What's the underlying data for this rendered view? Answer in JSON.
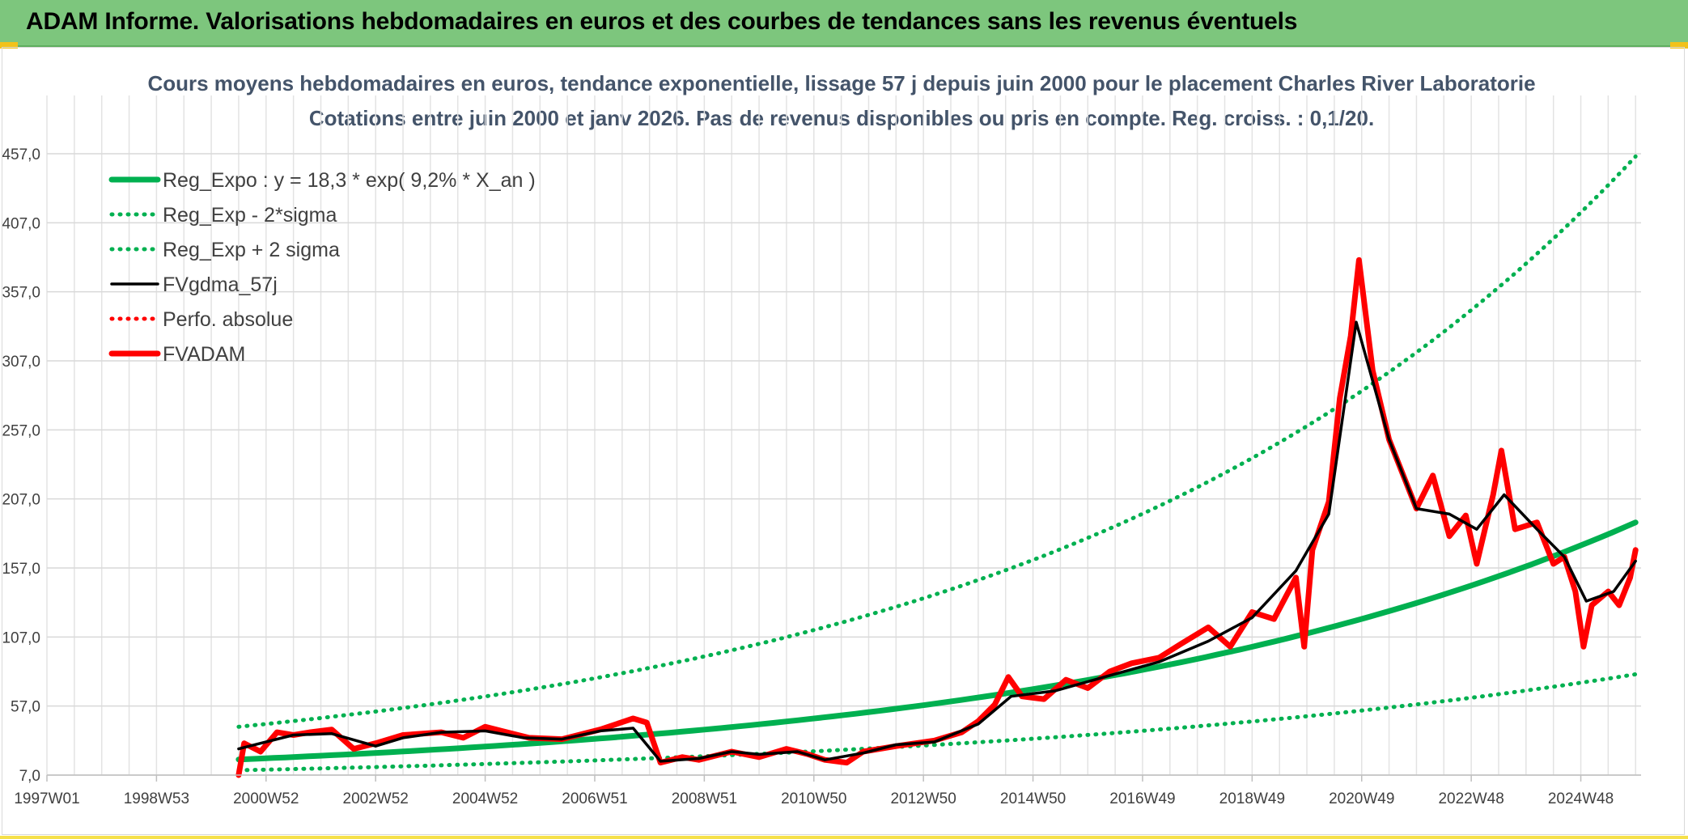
{
  "banner": {
    "title": "ADAM Informe. Valorisations hebdomadaires en euros et des courbes de tendances sans les revenus éventuels"
  },
  "colors": {
    "banner": "#7dc67d",
    "reg_green": "#00b050",
    "fvadam_red": "#ff0000",
    "gdma_black": "#000000",
    "title_text": "#44546a"
  },
  "chart_data": {
    "type": "line",
    "title": "Cours moyens hebdomadaires en euros, tendance exponentielle, lissage 57 j depuis juin 2000 pour le placement Charles River Laboratorie",
    "subtitle": "Cotations entre juin 2000 et janv 2026. Pas de revenus disponibles ou pris en compte. Reg. croiss. : 0,1/20.",
    "xlabel": "",
    "ylabel": "",
    "x_range": [
      1997.0,
      2026.1
    ],
    "x_tick_values": [
      1997.0,
      1999.0,
      2001.0,
      2003.0,
      2005.0,
      2007.0,
      2009.0,
      2011.0,
      2013.0,
      2015.0,
      2017.0,
      2019.0,
      2021.0,
      2023.0,
      2025.0
    ],
    "x_tick_labels": [
      "1997W01",
      "1998W53",
      "2000W52",
      "2002W52",
      "2004W52",
      "2006W51",
      "2008W51",
      "2010W50",
      "2012W50",
      "2014W50",
      "2016W49",
      "2018W49",
      "2020W49",
      "2022W48",
      "2024W48"
    ],
    "ylim": [
      7.0,
      457.0
    ],
    "y_ticks": [
      7.0,
      57.0,
      107.0,
      157.0,
      207.0,
      257.0,
      307.0,
      357.0,
      407.0,
      457.0
    ],
    "y_tick_labels": [
      "7,0",
      "57,0",
      "107,0",
      "157,0",
      "207,0",
      "257,0",
      "307,0",
      "357,0",
      "407,0",
      "457,0"
    ],
    "grid": true,
    "legend_position": "top-left",
    "series": [
      {
        "name": "Reg_Expo : y = 18,3 * exp( 9,2% *  X_an )",
        "style": "solid-thick",
        "color": "#00b050",
        "x": [
          2000.5,
          2026.0
        ],
        "values": [
          18.3,
          190.0
        ]
      },
      {
        "name": "Reg_Exp - 2*sigma",
        "style": "dotted",
        "color": "#00b050",
        "x": [
          2000.5,
          2026.0
        ],
        "values": [
          10.5,
          80.0
        ]
      },
      {
        "name": "Reg_Exp + 2 sigma",
        "style": "dotted",
        "color": "#00b050",
        "x": [
          2000.5,
          2026.0
        ],
        "values": [
          42.0,
          455.0
        ]
      },
      {
        "name": "FVgdma_57j",
        "style": "solid",
        "color": "#000000",
        "x": [
          2000.5,
          2000.9,
          2001.5,
          2002.2,
          2003.0,
          2003.5,
          2004.2,
          2005.0,
          2005.7,
          2006.4,
          2007.1,
          2007.7,
          2008.2,
          2008.9,
          2009.5,
          2010.0,
          2010.7,
          2011.2,
          2011.9,
          2012.5,
          2013.2,
          2014.0,
          2014.6,
          2015.4,
          2016.3,
          2017.3,
          2018.2,
          2019.0,
          2019.8,
          2020.4,
          2020.9,
          2021.5,
          2022.0,
          2022.6,
          2023.1,
          2023.6,
          2024.2,
          2024.7,
          2025.1,
          2025.6,
          2026.0
        ],
        "values": [
          26,
          30,
          36,
          37,
          28,
          34,
          38,
          39,
          34,
          33,
          39,
          41,
          17,
          19,
          24,
          22,
          24,
          18,
          23,
          29,
          31,
          44,
          64,
          68,
          78,
          89,
          104,
          121,
          155,
          196,
          335,
          250,
          200,
          196,
          185,
          210,
          185,
          165,
          133,
          140,
          162
        ]
      },
      {
        "name": "Perfo. absolue",
        "style": "dotted",
        "color": "#ff0000",
        "x": [],
        "values": []
      },
      {
        "name": "FVADAM",
        "style": "solid-thick",
        "color": "#ff0000",
        "x": [
          2000.5,
          2000.6,
          2000.9,
          2001.2,
          2001.5,
          2001.8,
          2002.2,
          2002.6,
          2003.0,
          2003.5,
          2004.2,
          2004.6,
          2005.0,
          2005.4,
          2005.8,
          2006.4,
          2007.1,
          2007.7,
          2007.95,
          2008.2,
          2008.6,
          2008.9,
          2009.5,
          2010.0,
          2010.5,
          2010.9,
          2011.2,
          2011.6,
          2011.9,
          2012.5,
          2013.2,
          2013.7,
          2014.0,
          2014.3,
          2014.55,
          2014.8,
          2015.2,
          2015.6,
          2016.0,
          2016.4,
          2016.8,
          2017.3,
          2017.7,
          2018.2,
          2018.6,
          2019.0,
          2019.4,
          2019.8,
          2019.95,
          2020.1,
          2020.4,
          2020.6,
          2020.8,
          2020.95,
          2021.2,
          2021.5,
          2021.8,
          2022.0,
          2022.3,
          2022.6,
          2022.9,
          2023.1,
          2023.4,
          2023.55,
          2023.8,
          2024.2,
          2024.5,
          2024.7,
          2024.9,
          2025.05,
          2025.2,
          2025.5,
          2025.7,
          2025.9,
          2026.0
        ],
        "values": [
          7,
          30,
          24,
          38,
          36,
          38,
          40,
          26,
          30,
          36,
          38,
          34,
          42,
          38,
          34,
          33,
          40,
          48,
          45,
          16,
          20,
          18,
          24,
          20,
          26,
          22,
          18,
          16,
          24,
          28,
          32,
          38,
          46,
          58,
          78,
          64,
          62,
          76,
          70,
          82,
          88,
          92,
          102,
          114,
          100,
          125,
          120,
          150,
          100,
          170,
          205,
          280,
          325,
          380,
          300,
          250,
          220,
          200,
          224,
          180,
          195,
          160,
          210,
          242,
          185,
          190,
          160,
          165,
          140,
          100,
          130,
          140,
          130,
          150,
          170
        ]
      }
    ]
  }
}
